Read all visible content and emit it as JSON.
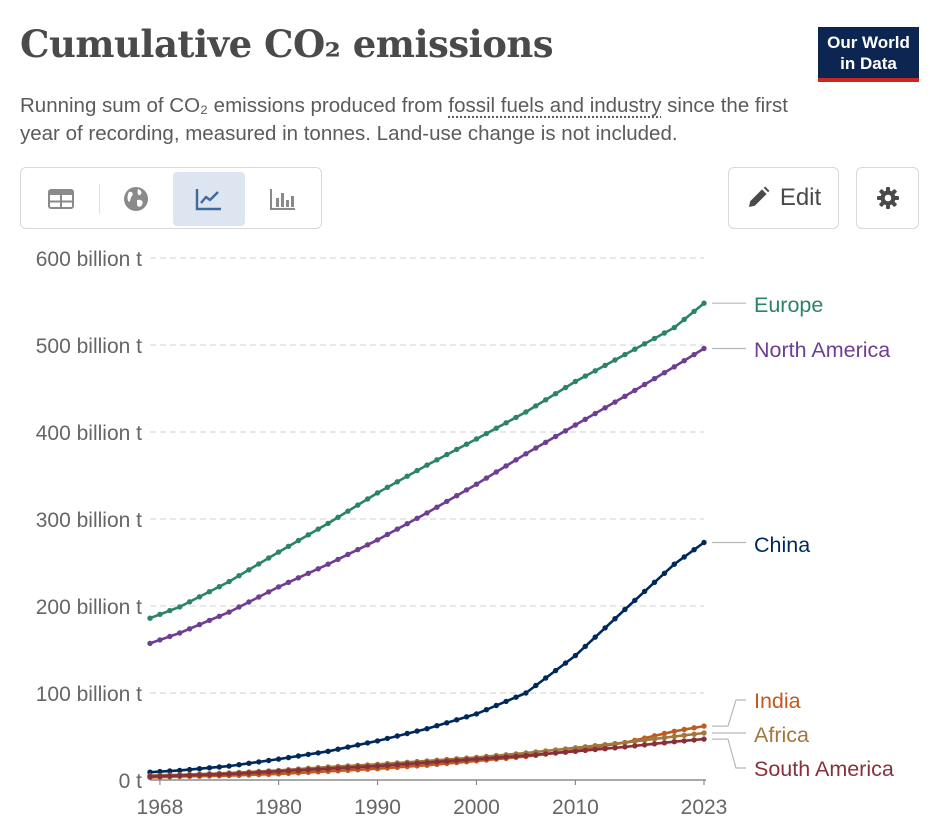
{
  "header": {
    "title": "Cumulative CO₂ emissions",
    "subtitle_before": "Running sum of CO₂ emissions produced from ",
    "subtitle_link": "fossil fuels and industry",
    "subtitle_after": " since the first year of recording, measured in tonnes. Land-use change is not included."
  },
  "logo": {
    "line1": "Our World",
    "line2": "in Data",
    "bg_color": "#0d2651",
    "bar_color": "#ce261e"
  },
  "toolbar": {
    "tabs": [
      {
        "name": "table",
        "icon": "table-icon",
        "active": false
      },
      {
        "name": "map",
        "icon": "globe-icon",
        "active": false
      },
      {
        "name": "chart",
        "icon": "line-chart-icon",
        "active": true
      },
      {
        "name": "bar",
        "icon": "bar-chart-icon",
        "active": false
      }
    ],
    "edit_label": "Edit",
    "edit_icon": "pencil-icon",
    "settings_icon": "gear-icon"
  },
  "chart_data": {
    "type": "line",
    "title": "Cumulative CO₂ emissions",
    "xlim": [
      1967,
      2023
    ],
    "ylim": [
      0,
      600
    ],
    "x_ticks": [
      1968,
      1980,
      1990,
      2000,
      2010,
      2023
    ],
    "y_ticks": [
      {
        "value": 0,
        "label": "0 t"
      },
      {
        "value": 100,
        "label": "100 billion t"
      },
      {
        "value": 200,
        "label": "200 billion t"
      },
      {
        "value": 300,
        "label": "300 billion t"
      },
      {
        "value": 400,
        "label": "400 billion t"
      },
      {
        "value": 500,
        "label": "500 billion t"
      },
      {
        "value": 600,
        "label": "600 billion t"
      }
    ],
    "grid": "horizontal-dashed",
    "legend": "direct labels at line ends (right)",
    "markers": true,
    "series": [
      {
        "name": "Europe",
        "color": "#2b8465",
        "points": [
          [
            1967,
            186
          ],
          [
            1970,
            199
          ],
          [
            1975,
            228
          ],
          [
            1980,
            262
          ],
          [
            1985,
            295
          ],
          [
            1990,
            330
          ],
          [
            1995,
            362
          ],
          [
            2000,
            392
          ],
          [
            2005,
            423
          ],
          [
            2010,
            458
          ],
          [
            2015,
            489
          ],
          [
            2020,
            520
          ],
          [
            2023,
            548
          ]
        ]
      },
      {
        "name": "North America",
        "color": "#6d3e91",
        "points": [
          [
            1967,
            157
          ],
          [
            1970,
            169
          ],
          [
            1975,
            193
          ],
          [
            1980,
            222
          ],
          [
            1985,
            248
          ],
          [
            1990,
            276
          ],
          [
            1995,
            307
          ],
          [
            2000,
            340
          ],
          [
            2005,
            375
          ],
          [
            2010,
            408
          ],
          [
            2015,
            441
          ],
          [
            2020,
            475
          ],
          [
            2023,
            496
          ]
        ]
      },
      {
        "name": "China",
        "color": "#00295b",
        "points": [
          [
            1967,
            9
          ],
          [
            1970,
            11
          ],
          [
            1975,
            16
          ],
          [
            1980,
            24
          ],
          [
            1985,
            33
          ],
          [
            1990,
            45
          ],
          [
            1995,
            59
          ],
          [
            2000,
            76
          ],
          [
            2005,
            100
          ],
          [
            2010,
            143
          ],
          [
            2015,
            196
          ],
          [
            2020,
            248
          ],
          [
            2023,
            273
          ]
        ]
      },
      {
        "name": "India",
        "color": "#c15a1f",
        "points": [
          [
            1967,
            3
          ],
          [
            1970,
            4
          ],
          [
            1975,
            5
          ],
          [
            1980,
            7
          ],
          [
            1985,
            10
          ],
          [
            1990,
            13
          ],
          [
            1995,
            17
          ],
          [
            2000,
            22
          ],
          [
            2005,
            27
          ],
          [
            2010,
            34
          ],
          [
            2015,
            43
          ],
          [
            2020,
            56
          ],
          [
            2023,
            62
          ]
        ]
      },
      {
        "name": "Africa",
        "color": "#a2763c",
        "points": [
          [
            1967,
            5
          ],
          [
            1970,
            6
          ],
          [
            1975,
            8
          ],
          [
            1980,
            11
          ],
          [
            1985,
            15
          ],
          [
            1990,
            18
          ],
          [
            1995,
            22
          ],
          [
            2000,
            26
          ],
          [
            2005,
            31
          ],
          [
            2010,
            37
          ],
          [
            2015,
            43
          ],
          [
            2020,
            50
          ],
          [
            2023,
            54
          ]
        ]
      },
      {
        "name": "South America",
        "color": "#883039",
        "points": [
          [
            1967,
            4
          ],
          [
            1970,
            5
          ],
          [
            1975,
            7
          ],
          [
            1980,
            10
          ],
          [
            1985,
            13
          ],
          [
            1990,
            16
          ],
          [
            1995,
            20
          ],
          [
            2000,
            24
          ],
          [
            2005,
            28
          ],
          [
            2010,
            33
          ],
          [
            2015,
            38
          ],
          [
            2020,
            44
          ],
          [
            2023,
            47
          ]
        ]
      }
    ]
  }
}
